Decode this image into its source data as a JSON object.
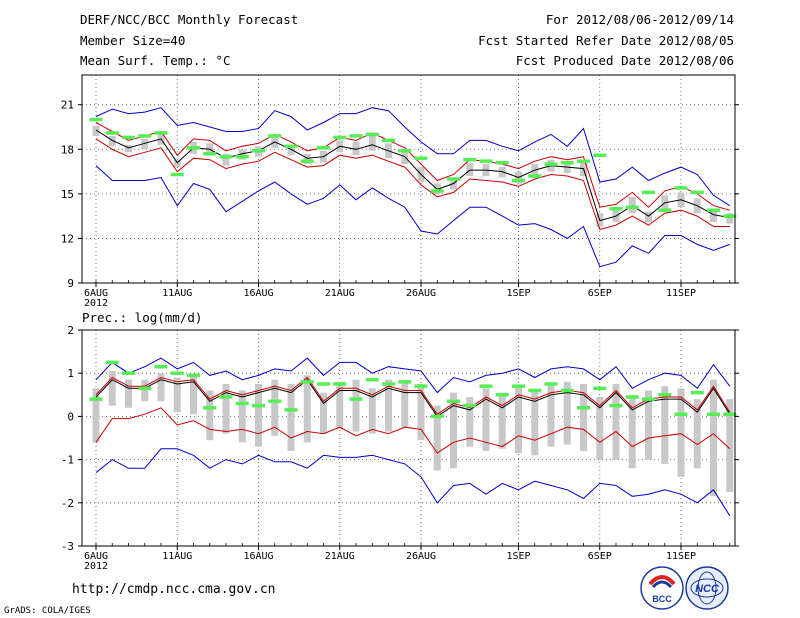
{
  "header": {
    "title": "DERF/NCC/BCC Monthly Forecast",
    "member_size": "Member Size=40",
    "variable": "Mean Surf. Temp.: °C",
    "period": "For 2012/08/06-2012/09/14",
    "started_refer": "Fcst Started Refer Date 2012/08/05",
    "produced": "Fcst Produced Date 2012/08/06"
  },
  "footer": {
    "url": "http://cmdp.ncc.cma.gov.cn",
    "grads": "GrADS: COLA/IGES",
    "logo_bcc": "BCC",
    "logo_ncc": "NCC"
  },
  "colors": {
    "mean": "#000000",
    "spread": "#cc0000",
    "extreme": "#0000cc",
    "obs": "#55ee55",
    "box": "#c8c8c8"
  },
  "chart_data": [
    {
      "type": "line",
      "title": "Mean Surf. Temp.: °C",
      "ylabel": "°C",
      "ylim": [
        9,
        23
      ],
      "yticks": [
        9,
        12,
        15,
        18,
        21
      ],
      "x": [
        1,
        2,
        3,
        4,
        5,
        6,
        7,
        8,
        9,
        10,
        11,
        12,
        13,
        14,
        15,
        16,
        17,
        18,
        19,
        20,
        21,
        22,
        23,
        24,
        25,
        26,
        27,
        28,
        29,
        30,
        31,
        32,
        33,
        34,
        35,
        36,
        37,
        38,
        39,
        40
      ],
      "xticks": [
        {
          "day": 1,
          "label": "6AUG",
          "sub": "2012"
        },
        {
          "day": 6,
          "label": "11AUG"
        },
        {
          "day": 11,
          "label": "16AUG"
        },
        {
          "day": 16,
          "label": "21AUG"
        },
        {
          "day": 21,
          "label": "26AUG"
        },
        {
          "day": 27,
          "label": "1SEP"
        },
        {
          "day": 32,
          "label": "6SEP"
        },
        {
          "day": 37,
          "label": "11SEP"
        }
      ],
      "series": [
        {
          "name": "ensemble mean",
          "role": "mean",
          "values": [
            19.3,
            18.6,
            18.1,
            18.4,
            18.7,
            17.1,
            18.1,
            18.0,
            17.4,
            17.7,
            17.9,
            18.5,
            18.0,
            17.4,
            17.5,
            18.2,
            18.0,
            18.3,
            17.9,
            17.5,
            16.3,
            15.3,
            15.7,
            16.6,
            16.6,
            16.5,
            16.1,
            16.6,
            16.9,
            16.8,
            16.7,
            13.2,
            13.5,
            14.2,
            13.5,
            14.4,
            14.6,
            14.2,
            13.6,
            13.4
          ]
        },
        {
          "name": "mean + 1 sd",
          "role": "spread",
          "values": [
            19.8,
            19.2,
            18.6,
            18.9,
            19.2,
            17.6,
            18.7,
            18.6,
            17.9,
            18.2,
            18.4,
            19.0,
            18.5,
            17.9,
            18.1,
            18.8,
            18.6,
            19.1,
            18.6,
            18.1,
            17.0,
            15.9,
            16.3,
            17.3,
            17.2,
            17.0,
            16.7,
            17.2,
            17.5,
            17.3,
            17.5,
            14.1,
            14.3,
            15.1,
            14.1,
            15.2,
            15.5,
            15.0,
            14.2,
            13.9
          ]
        },
        {
          "name": "mean - 1 sd",
          "role": "spread",
          "values": [
            18.7,
            18.0,
            17.5,
            17.8,
            18.1,
            16.5,
            17.4,
            17.3,
            16.7,
            17.0,
            17.2,
            17.8,
            17.3,
            16.8,
            16.9,
            17.6,
            17.4,
            17.6,
            17.2,
            16.8,
            15.6,
            14.8,
            15.1,
            16.0,
            15.9,
            15.8,
            15.5,
            16.0,
            16.3,
            16.2,
            15.9,
            12.6,
            12.9,
            13.5,
            12.9,
            13.7,
            13.9,
            13.5,
            12.8,
            12.8
          ]
        },
        {
          "name": "ensemble max",
          "role": "extreme",
          "values": [
            20.2,
            20.7,
            20.4,
            20.5,
            20.8,
            19.6,
            19.8,
            19.5,
            19.2,
            19.2,
            19.4,
            20.6,
            20.2,
            19.3,
            19.8,
            20.4,
            20.4,
            20.8,
            20.6,
            19.5,
            18.5,
            17.7,
            17.7,
            18.6,
            18.6,
            18.2,
            17.9,
            18.5,
            19.0,
            18.2,
            19.4,
            15.8,
            16.0,
            16.8,
            15.9,
            16.4,
            16.8,
            16.3,
            14.9,
            14.2
          ]
        },
        {
          "name": "ensemble min",
          "role": "extreme",
          "values": [
            16.9,
            15.9,
            15.9,
            15.9,
            16.1,
            14.2,
            15.7,
            15.3,
            13.8,
            14.5,
            15.2,
            15.8,
            15.0,
            14.3,
            14.7,
            15.6,
            14.6,
            15.4,
            14.7,
            14.1,
            12.5,
            12.3,
            13.2,
            14.1,
            14.1,
            13.5,
            12.9,
            13.0,
            12.6,
            12.0,
            12.8,
            10.1,
            10.4,
            11.5,
            11.0,
            12.2,
            12.2,
            11.6,
            11.2,
            11.6
          ]
        }
      ],
      "observed": [
        20.0,
        19.1,
        18.8,
        18.9,
        19.1,
        16.3,
        18.1,
        17.7,
        17.5,
        17.5,
        17.9,
        18.9,
        18.2,
        17.2,
        18.1,
        18.8,
        18.9,
        19.0,
        18.6,
        17.9,
        17.4,
        15.2,
        16.0,
        17.3,
        17.2,
        17.1,
        15.9,
        16.2,
        17.0,
        17.1,
        17.2,
        17.6,
        14.0,
        14.1,
        15.1,
        13.9,
        15.4,
        15.1,
        13.9,
        13.5
      ],
      "box": {
        "q75": [
          19.6,
          18.9,
          18.3,
          18.7,
          19.0,
          17.3,
          18.5,
          18.4,
          17.7,
          18.0,
          18.2,
          18.9,
          18.3,
          17.7,
          17.9,
          18.6,
          18.5,
          18.9,
          18.4,
          17.9,
          16.8,
          15.7,
          16.1,
          17.1,
          17.0,
          16.8,
          16.5,
          17.0,
          17.3,
          17.1,
          17.2,
          13.7,
          14.0,
          14.8,
          13.8,
          14.9,
          15.1,
          14.7,
          14.0,
          13.7
        ],
        "q25": [
          18.9,
          18.2,
          17.8,
          18.0,
          18.3,
          16.8,
          17.7,
          17.6,
          16.9,
          17.3,
          17.5,
          18.1,
          17.6,
          17.0,
          17.1,
          17.8,
          17.6,
          17.9,
          17.4,
          17.0,
          15.8,
          15.0,
          15.3,
          16.2,
          16.2,
          16.1,
          15.7,
          16.2,
          16.5,
          16.4,
          16.2,
          12.8,
          13.1,
          13.7,
          13.1,
          13.9,
          14.1,
          13.7,
          13.1,
          13.0
        ]
      }
    },
    {
      "type": "line",
      "title": "Prec.: log(mm/d)",
      "ylabel": "log(mm/d)",
      "ylim": [
        -3,
        2
      ],
      "yticks": [
        -3,
        -2,
        -1,
        0,
        1,
        2
      ],
      "x": [
        1,
        2,
        3,
        4,
        5,
        6,
        7,
        8,
        9,
        10,
        11,
        12,
        13,
        14,
        15,
        16,
        17,
        18,
        19,
        20,
        21,
        22,
        23,
        24,
        25,
        26,
        27,
        28,
        29,
        30,
        31,
        32,
        33,
        34,
        35,
        36,
        37,
        38,
        39,
        40
      ],
      "xticks": [
        {
          "day": 1,
          "label": "6AUG",
          "sub": "2012"
        },
        {
          "day": 6,
          "label": "11AUG"
        },
        {
          "day": 11,
          "label": "16AUG"
        },
        {
          "day": 16,
          "label": "21AUG"
        },
        {
          "day": 21,
          "label": "26AUG"
        },
        {
          "day": 27,
          "label": "1SEP"
        },
        {
          "day": 32,
          "label": "6SEP"
        },
        {
          "day": 37,
          "label": "11SEP"
        }
      ],
      "series": [
        {
          "name": "ensemble mean",
          "role": "mean",
          "values": [
            0.45,
            0.85,
            0.65,
            0.65,
            0.85,
            0.75,
            0.8,
            0.35,
            0.55,
            0.45,
            0.55,
            0.65,
            0.55,
            0.85,
            0.3,
            0.6,
            0.6,
            0.45,
            0.65,
            0.55,
            0.55,
            0.0,
            0.25,
            0.15,
            0.4,
            0.2,
            0.45,
            0.35,
            0.5,
            0.55,
            0.5,
            0.2,
            0.55,
            0.15,
            0.35,
            0.4,
            0.4,
            0.1,
            0.65,
            0.05
          ]
        },
        {
          "name": "mean + 1 sd",
          "role": "spread",
          "values": [
            0.5,
            0.9,
            0.7,
            0.7,
            0.9,
            0.8,
            0.85,
            0.4,
            0.6,
            0.5,
            0.6,
            0.7,
            0.6,
            0.9,
            0.35,
            0.65,
            0.65,
            0.5,
            0.7,
            0.6,
            0.6,
            0.05,
            0.3,
            0.2,
            0.45,
            0.25,
            0.5,
            0.4,
            0.55,
            0.6,
            0.55,
            0.25,
            0.6,
            0.2,
            0.4,
            0.45,
            0.45,
            0.15,
            0.7,
            0.1
          ]
        },
        {
          "name": "mean - 1 sd",
          "role": "spread",
          "values": [
            -0.6,
            -0.05,
            -0.05,
            0.05,
            0.2,
            -0.2,
            -0.1,
            -0.3,
            -0.35,
            -0.3,
            -0.4,
            -0.25,
            -0.5,
            -0.35,
            -0.4,
            -0.25,
            -0.45,
            -0.3,
            -0.4,
            -0.25,
            -0.3,
            -0.85,
            -0.6,
            -0.5,
            -0.6,
            -0.7,
            -0.45,
            -0.55,
            -0.4,
            -0.25,
            -0.3,
            -0.6,
            -0.35,
            -0.7,
            -0.5,
            -0.45,
            -0.4,
            -0.65,
            -0.4,
            -0.75
          ]
        },
        {
          "name": "ensemble max",
          "role": "extreme",
          "values": [
            0.85,
            1.25,
            1.0,
            1.15,
            1.35,
            1.1,
            1.25,
            0.95,
            1.05,
            0.85,
            0.95,
            1.1,
            1.05,
            1.35,
            0.95,
            1.25,
            1.25,
            1.0,
            1.15,
            1.1,
            1.05,
            0.55,
            0.9,
            0.8,
            0.95,
            1.0,
            1.1,
            0.9,
            1.1,
            1.15,
            1.1,
            0.85,
            1.15,
            0.65,
            0.85,
            1.0,
            0.95,
            0.65,
            1.2,
            0.7
          ]
        },
        {
          "name": "ensemble min",
          "role": "extreme",
          "values": [
            -1.3,
            -1.0,
            -1.2,
            -1.2,
            -0.75,
            -0.75,
            -0.9,
            -1.2,
            -1.0,
            -1.1,
            -0.9,
            -1.05,
            -1.05,
            -1.2,
            -0.9,
            -0.95,
            -0.95,
            -0.9,
            -1.0,
            -1.1,
            -1.4,
            -2.0,
            -1.6,
            -1.55,
            -1.8,
            -1.55,
            -1.7,
            -1.5,
            -1.6,
            -1.7,
            -1.9,
            -1.55,
            -1.6,
            -1.85,
            -1.8,
            -1.7,
            -1.8,
            -2.0,
            -1.7,
            -2.3
          ]
        }
      ],
      "observed": [
        0.4,
        1.25,
        1.0,
        0.65,
        1.15,
        1.0,
        0.95,
        0.2,
        0.45,
        0.3,
        0.25,
        0.35,
        0.15,
        0.8,
        0.75,
        0.75,
        0.4,
        0.85,
        0.75,
        0.8,
        0.7,
        0.0,
        0.35,
        0.25,
        0.7,
        0.5,
        0.7,
        0.6,
        0.75,
        0.6,
        0.2,
        0.65,
        0.25,
        0.45,
        0.4,
        0.5,
        0.05,
        0.55,
        0.05,
        0.05
      ],
      "box": {
        "q75": [
          0.65,
          1.05,
          0.85,
          0.85,
          1.0,
          0.9,
          0.95,
          0.6,
          0.75,
          0.6,
          0.75,
          0.85,
          0.75,
          0.95,
          0.55,
          0.8,
          0.85,
          0.65,
          0.85,
          0.8,
          0.75,
          0.25,
          0.55,
          0.45,
          0.65,
          0.55,
          0.7,
          0.6,
          0.75,
          0.8,
          0.75,
          0.45,
          0.75,
          0.45,
          0.6,
          0.7,
          0.65,
          0.4,
          0.85,
          0.4
        ],
        "q25": [
          -0.6,
          0.25,
          0.2,
          0.35,
          0.35,
          0.1,
          0.05,
          -0.55,
          -0.4,
          -0.6,
          -0.7,
          -0.45,
          -0.8,
          -0.6,
          -0.4,
          -0.3,
          -0.35,
          -0.4,
          -0.35,
          -0.25,
          -0.55,
          -1.25,
          -1.2,
          -0.7,
          -0.8,
          -0.75,
          -0.85,
          -0.9,
          -0.7,
          -0.65,
          -0.8,
          -1.0,
          -1.0,
          -1.2,
          -1.0,
          -1.1,
          -1.4,
          -1.2,
          -1.85,
          -1.75
        ]
      }
    }
  ]
}
